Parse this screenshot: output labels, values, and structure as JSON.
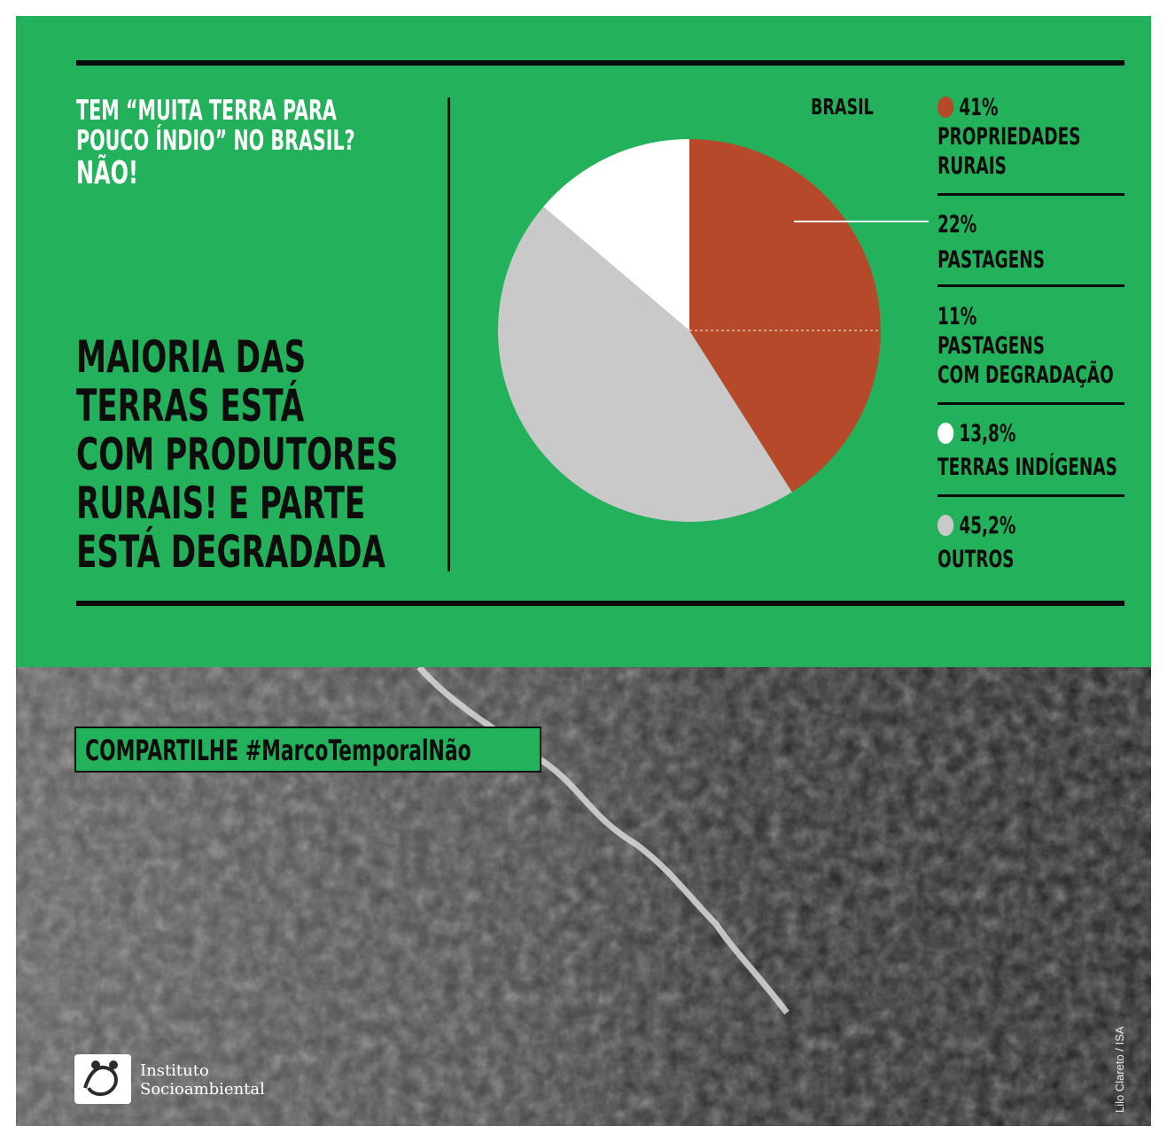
{
  "header": {
    "question_lines": [
      "TEM “MUITA TERRA PARA",
      "POUCO ÍNDIO”  NO BRASIL?",
      "NÃO!"
    ],
    "headline_lines": [
      "MAIORIA DAS",
      "TERRAS ESTÁ",
      "COM PRODUTORES",
      "RURAIS! E PARTE",
      "ESTÁ DEGRADADA"
    ]
  },
  "chart_data": {
    "type": "pie",
    "title": "BRASIL",
    "slices": [
      {
        "label": "PROPRIEDADES RURAIS",
        "value": 41,
        "color": "#b7492b"
      },
      {
        "label": "OUTROS",
        "value": 45.2,
        "color": "#c9c9c9"
      },
      {
        "label": "TERRAS INDÍGENAS",
        "value": 13.8,
        "color": "#ffffff"
      }
    ],
    "breakdown": [
      {
        "label": "PASTAGENS",
        "value": 22
      },
      {
        "label": "PASTAGENS COM DEGRADAÇÃO",
        "value": 11
      }
    ]
  },
  "legend": [
    {
      "value": "41%",
      "label_lines": [
        "PROPRIEDADES",
        "RURAIS"
      ],
      "dot_color": "#b7492b"
    },
    {
      "value": "22%",
      "label_lines": [
        "PASTAGENS"
      ],
      "dot_color": ""
    },
    {
      "value": "11%",
      "label_lines": [
        "PASTAGENS",
        "COM DEGRADAÇÃO"
      ],
      "dot_color": ""
    },
    {
      "value": "13,8%",
      "label_lines": [
        "TERRAS INDÍGENAS"
      ],
      "dot_color": "#ffffff"
    },
    {
      "value": "45,2%",
      "label_lines": [
        "OUTROS"
      ],
      "dot_color": "#c9c9c9"
    }
  ],
  "share": {
    "label": "COMPARTILHE  #MarcoTemporalNão"
  },
  "logo": {
    "lines": [
      "Instituto",
      "Socioambiental"
    ]
  },
  "photo_credit": "Lilo Clareto / ISA",
  "colors": {
    "background": "#23b15c",
    "accent": "#b7492b"
  }
}
